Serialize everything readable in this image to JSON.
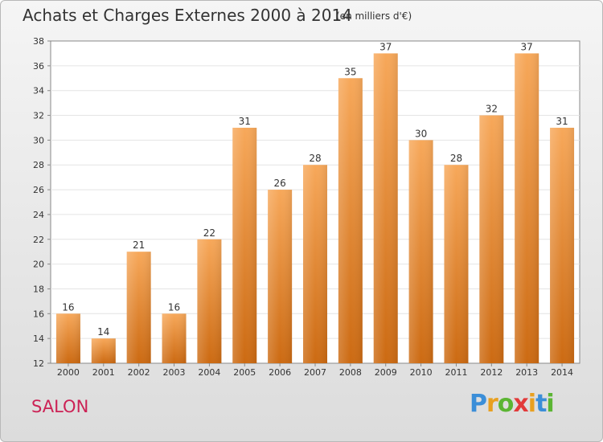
{
  "header": {
    "title": "Achats et Charges Externes 2000 à 2014",
    "subtitle": "(en milliers d'€)"
  },
  "footer": {
    "place": "SALON",
    "logo": [
      "P",
      "r",
      "o",
      "x",
      "i",
      "t",
      "i"
    ],
    "logo_colors": [
      "#3b8ed8",
      "#e8a020",
      "#5bb533",
      "#e23a3a",
      "#e8a020",
      "#3b8ed8",
      "#5bb533"
    ]
  },
  "chart_data": {
    "type": "bar",
    "title": "Achats et Charges Externes 2000 à 2014",
    "subtitle": "(en milliers d'€)",
    "categories": [
      "2000",
      "2001",
      "2002",
      "2003",
      "2004",
      "2005",
      "2006",
      "2007",
      "2008",
      "2009",
      "2010",
      "2011",
      "2012",
      "2013",
      "2014"
    ],
    "values": [
      16,
      14,
      21,
      16,
      22,
      31,
      26,
      28,
      35,
      37,
      30,
      28,
      32,
      37,
      31
    ],
    "ylim": [
      12,
      38
    ],
    "yticks": [
      12,
      14,
      16,
      18,
      20,
      22,
      24,
      26,
      28,
      30,
      32,
      34,
      36,
      38
    ],
    "grid": true,
    "bar_color_top": "#f7a85a",
    "bar_color_bottom": "#cc6a12"
  }
}
